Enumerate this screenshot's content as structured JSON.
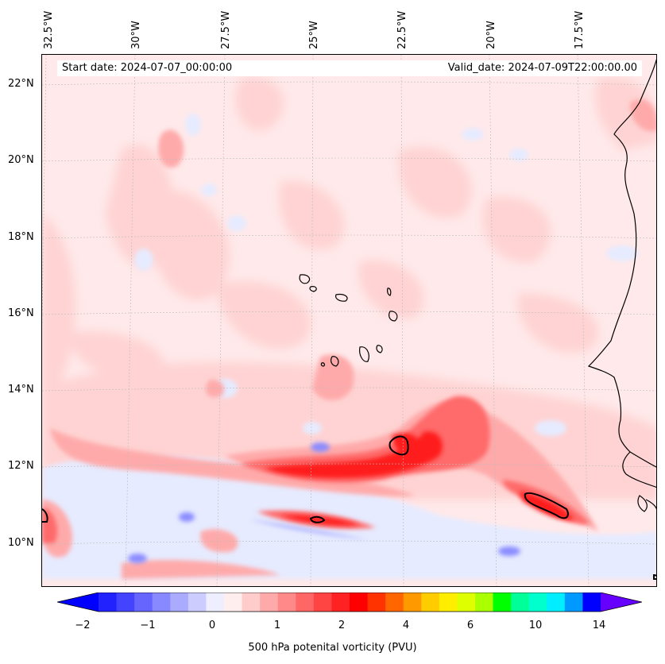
{
  "map": {
    "start_date": "Start date: 2024-07-07_00:00:00",
    "valid_date": "Valid_date: 2024-07-09T22:00:00.00",
    "lon_labels": [
      "32.5°W",
      "30°W",
      "27.5°W",
      "25°W",
      "22.5°W",
      "20°W",
      "17.5°W"
    ],
    "lat_labels": [
      "22°N",
      "20°N",
      "18°N",
      "16°N",
      "14°N",
      "12°N",
      "10°N"
    ],
    "colorbar": {
      "label": "500 hPa potenital vorticity (PVU)",
      "ticks": [
        "−2",
        "−1",
        "0",
        "1",
        "2",
        "4",
        "6",
        "10",
        "14"
      ],
      "colors": [
        "#0000ff",
        "#2222ff",
        "#4444ff",
        "#6666ff",
        "#8888ff",
        "#aaaaff",
        "#ccccff",
        "#eeeeff",
        "#ffeeee",
        "#ffcccc",
        "#ffaaaa",
        "#ff8888",
        "#ff6666",
        "#ff4444",
        "#ff2222",
        "#ff0000",
        "#ff3300",
        "#ff6600",
        "#ff9900",
        "#ffcc00",
        "#ffee00",
        "#ddff00",
        "#aaff00",
        "#00ff00",
        "#00ff99",
        "#00ffcc",
        "#00eeff",
        "#0099ff",
        "#0000ff",
        "#6600ff"
      ]
    },
    "colors": {
      "background": "#ffe9ea",
      "light_pink": "#ffd3d3",
      "pink": "#ffaaaa",
      "red_mid": "#ff6b6b",
      "red": "#ff1f1f",
      "light_blue": "#e6ebff",
      "blue": "#8a8cff",
      "coast": "#000000"
    }
  }
}
